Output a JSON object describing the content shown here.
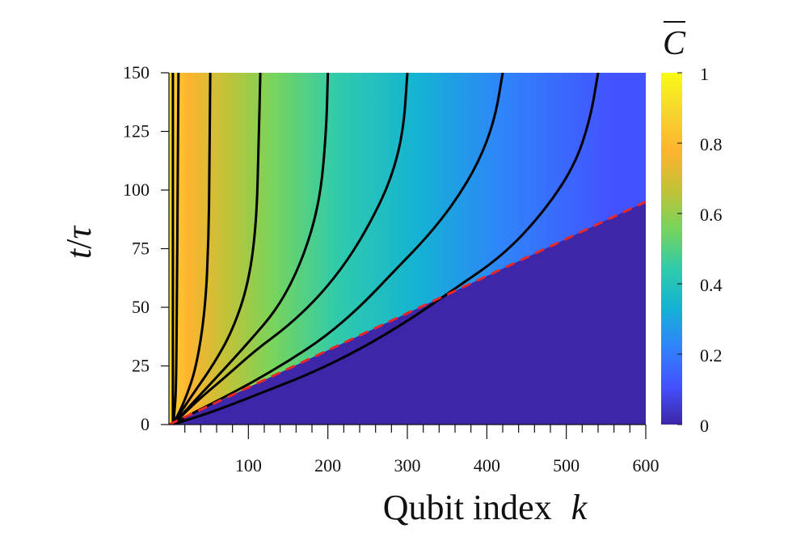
{
  "chart_data": {
    "type": "heatmap",
    "title": "",
    "xlabel": "Qubit index",
    "xlabel_var": "k",
    "ylabel_num": "t",
    "ylabel_slash": "/",
    "ylabel_den": "τ",
    "xlim": [
      0,
      600
    ],
    "ylim": [
      0,
      150
    ],
    "xticks": [
      100,
      200,
      300,
      400,
      500,
      600
    ],
    "yticks": [
      0,
      25,
      50,
      75,
      100,
      125,
      150
    ],
    "colorbar": {
      "label": "C",
      "label_overline": true,
      "range": [
        0,
        1
      ],
      "ticks": [
        "0",
        "0.2",
        "0.4",
        "0.6",
        "0.8",
        "1"
      ],
      "colormap": [
        "#3e26a8",
        "#4352ff",
        "#2f84fa",
        "#14b3d3",
        "#31cbaa",
        "#76d45c",
        "#c2c237",
        "#ffb32f",
        "#f6d52d",
        "#f9fb15"
      ]
    },
    "background_region": {
      "name": "causal-cone-exterior",
      "value": 0,
      "color": "#3e26a8"
    },
    "contours": [
      {
        "level": 0.9,
        "points": [
          [
            5,
            150
          ],
          [
            5,
            100
          ],
          [
            5,
            50
          ],
          [
            5,
            10
          ],
          [
            5,
            0
          ]
        ]
      },
      {
        "level": 0.85,
        "points": [
          [
            12,
            150
          ],
          [
            11,
            100
          ],
          [
            10,
            50
          ],
          [
            9,
            15
          ],
          [
            7,
            5
          ],
          [
            5,
            0
          ]
        ]
      },
      {
        "level": 0.75,
        "points": [
          [
            52,
            150
          ],
          [
            51,
            110
          ],
          [
            50,
            80
          ],
          [
            46,
            50
          ],
          [
            35,
            25
          ],
          [
            20,
            10
          ],
          [
            5,
            0
          ]
        ]
      },
      {
        "level": 0.65,
        "points": [
          [
            115,
            150
          ],
          [
            113,
            120
          ],
          [
            110,
            85
          ],
          [
            100,
            60
          ],
          [
            80,
            40
          ],
          [
            55,
            25
          ],
          [
            28,
            12
          ],
          [
            5,
            0
          ]
        ]
      },
      {
        "level": 0.55,
        "points": [
          [
            200,
            150
          ],
          [
            198,
            125
          ],
          [
            190,
            95
          ],
          [
            168,
            70
          ],
          [
            138,
            50
          ],
          [
            100,
            35
          ],
          [
            65,
            22
          ],
          [
            32,
            10
          ],
          [
            5,
            0
          ]
        ]
      },
      {
        "level": 0.45,
        "points": [
          [
            300,
            150
          ],
          [
            295,
            125
          ],
          [
            280,
            105
          ],
          [
            255,
            87
          ],
          [
            225,
            70
          ],
          [
            190,
            55
          ],
          [
            150,
            42
          ],
          [
            110,
            32
          ],
          [
            70,
            20
          ],
          [
            35,
            10
          ],
          [
            5,
            0
          ]
        ]
      },
      {
        "level": 0.35,
        "points": [
          [
            420,
            150
          ],
          [
            410,
            130
          ],
          [
            390,
            112
          ],
          [
            360,
            95
          ],
          [
            325,
            80
          ],
          [
            285,
            66
          ],
          [
            240,
            50
          ],
          [
            195,
            37
          ],
          [
            150,
            27
          ],
          [
            105,
            18
          ],
          [
            60,
            10
          ],
          [
            25,
            4
          ],
          [
            5,
            0
          ]
        ]
      },
      {
        "level": 0.25,
        "points": [
          [
            540,
            150
          ],
          [
            530,
            130
          ],
          [
            510,
            110
          ],
          [
            470,
            90
          ],
          [
            420,
            72
          ],
          [
            360,
            58
          ],
          [
            300,
            44
          ],
          [
            240,
            32
          ],
          [
            180,
            22
          ],
          [
            120,
            14
          ],
          [
            60,
            6
          ],
          [
            5,
            0
          ]
        ]
      }
    ],
    "front_line": {
      "style": "dashed",
      "color": "#e8272a",
      "points": [
        [
          0,
          0
        ],
        [
          600,
          95
        ]
      ]
    }
  }
}
